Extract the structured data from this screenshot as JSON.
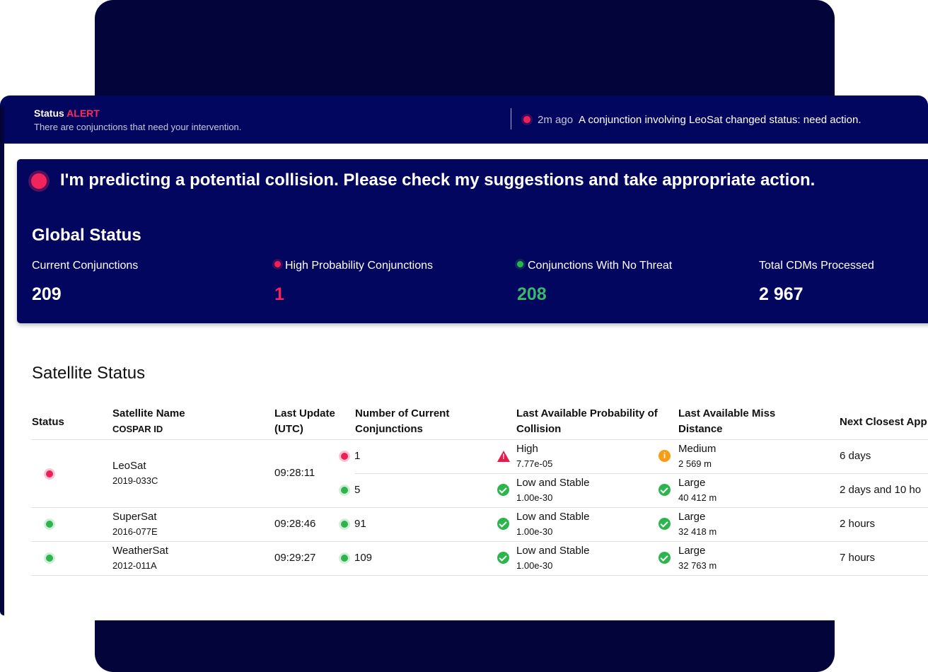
{
  "topbar": {
    "status_label": "Status",
    "status_value": "ALERT",
    "subtitle": "There are conjunctions that need your intervention.",
    "notification_age": "2m ago",
    "notification_text": "A conjunction involving LeoSat changed status: need action."
  },
  "alert": {
    "headline": "I'm predicting a potential collision. Please check my suggestions and take appropriate action."
  },
  "global_status": {
    "title": "Global Status",
    "stats": [
      {
        "label": "Current Conjunctions",
        "value": "209"
      },
      {
        "label": "High Probability Conjunctions",
        "value": "1"
      },
      {
        "label": "Conjunctions With No Threat",
        "value": "208"
      },
      {
        "label": "Total CDMs Processed",
        "value": "2 967"
      }
    ]
  },
  "satellite_status": {
    "title": "Satellite Status",
    "columns": {
      "status": "Status",
      "name": "Satellite Name",
      "cospar": "COSPAR ID",
      "last_update_1": "Last Update",
      "last_update_2": "(UTC)",
      "num_conj_1": "Number of Current",
      "num_conj_2": "Conjunctions",
      "prob_1": "Last Available Probability of",
      "prob_2": "Collision",
      "miss_1": "Last Available Miss",
      "miss_2": "Distance",
      "next": "Next Closest App"
    },
    "rows": [
      {
        "status": "red",
        "name": "LeoSat",
        "cospar": "2019-033C",
        "last_update": "09:28:11",
        "sub": [
          {
            "dot": "red",
            "count": "1",
            "prob_icon": "warning-icon",
            "prob": "High",
            "prob_val": "7.77e-05",
            "miss_icon": "info-icon",
            "miss": "Medium",
            "miss_val": "2 569 m",
            "next": "6 days"
          },
          {
            "dot": "green",
            "count": "5",
            "prob_icon": "check-icon",
            "prob": "Low and Stable",
            "prob_val": "1.00e-30",
            "miss_icon": "check-icon",
            "miss": "Large",
            "miss_val": "40 412 m",
            "next": "2 days and 10 ho"
          }
        ]
      },
      {
        "status": "green",
        "name": "SuperSat",
        "cospar": "2016-077E",
        "last_update": "09:28:46",
        "sub": [
          {
            "dot": "green",
            "count": "91",
            "prob_icon": "check-icon",
            "prob": "Low and Stable",
            "prob_val": "1.00e-30",
            "miss_icon": "check-icon",
            "miss": "Large",
            "miss_val": "32 418 m",
            "next": "2 hours"
          }
        ]
      },
      {
        "status": "green",
        "name": "WeatherSat",
        "cospar": "2012-011A",
        "last_update": "09:29:27",
        "sub": [
          {
            "dot": "green",
            "count": "109",
            "prob_icon": "check-icon",
            "prob": "Low and Stable",
            "prob_val": "1.00e-30",
            "miss_icon": "check-icon",
            "miss": "Large",
            "miss_val": "32 763 m",
            "next": "7 hours"
          }
        ]
      }
    ]
  },
  "colors": {
    "navy": "#02065e",
    "alert_red": "#f2245c",
    "ok_green": "#2db54d",
    "warn_orange": "#f59d14"
  }
}
